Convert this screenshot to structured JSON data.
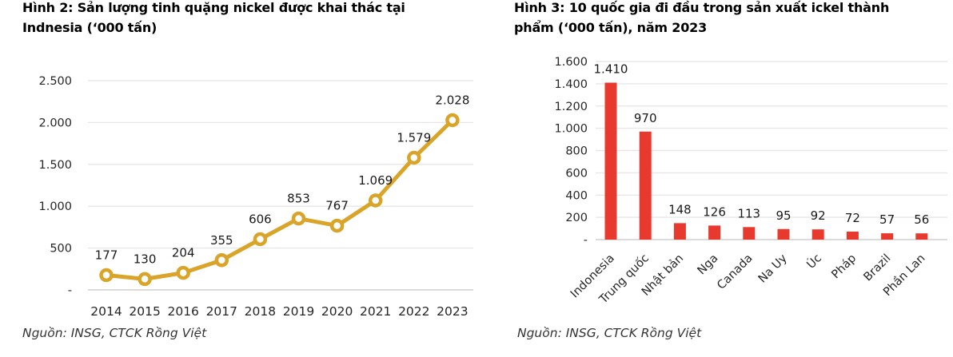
{
  "page": {
    "background": "#ffffff"
  },
  "chart_data": [
    {
      "id": "figure-2",
      "type": "line",
      "title": "Hình 2: Sản lượng tinh quặng nickel được khai thác tại Indnesia (‘000 tấn)",
      "title_lines": [
        "Hình 2: Sản lượng tinh quặng nickel được khai thác tại",
        "Indnesia (‘000 tấn)"
      ],
      "source": "Nguồn: INSG, CTCK Rồng Việt",
      "categories": [
        "2014",
        "2015",
        "2016",
        "2017",
        "2018",
        "2019",
        "2020",
        "2021",
        "2022",
        "2023"
      ],
      "values": [
        177,
        130,
        204,
        355,
        606,
        853,
        767,
        1069,
        1579,
        2028
      ],
      "value_labels": [
        "177",
        "130",
        "204",
        "355",
        "606",
        "853",
        "767",
        "1.069",
        "1.579",
        "2.028"
      ],
      "ylim": [
        0,
        2500
      ],
      "yticks": [
        2500,
        2000,
        1500,
        1000,
        500,
        0
      ],
      "ytick_labels": [
        "2.500",
        "2.000",
        "1.500",
        "1.000",
        "500",
        "-"
      ],
      "grid": true,
      "legend": "none",
      "line_color": "#DAA428",
      "marker_fill": "#ffffff",
      "grid_color": "#E7E7E7",
      "axis_color": "#CFCFCF"
    },
    {
      "id": "figure-3",
      "type": "bar",
      "title": "Hình 3: 10 quốc gia đi đầu trong sản xuất ickel thành phẩm (‘000 tấn), năm 2023",
      "title_lines": [
        "Hình 3: 10 quốc gia đi đầu trong sản xuất ickel thành",
        "phẩm (‘000 tấn), năm 2023"
      ],
      "source": "Nguồn: INSG, CTCK Rồng Việt",
      "categories": [
        "Indonesia",
        "Trung quốc",
        "Nhật bản",
        "Nga",
        "Canada",
        "Na Uy",
        "Úc",
        "Pháp",
        "Brazil",
        "Phần Lan"
      ],
      "values": [
        1410,
        970,
        148,
        126,
        113,
        95,
        92,
        72,
        57,
        56
      ],
      "value_labels": [
        "1.410",
        "970",
        "148",
        "126",
        "113",
        "95",
        "92",
        "72",
        "57",
        "56"
      ],
      "ylim": [
        0,
        1600
      ],
      "yticks": [
        1600,
        1400,
        1200,
        1000,
        800,
        600,
        400,
        200,
        0
      ],
      "ytick_labels": [
        "1.600",
        "1.400",
        "1.200",
        "1.000",
        "800",
        "600",
        "400",
        "200",
        "-"
      ],
      "grid": true,
      "legend": "none",
      "bar_color": "#E8392E",
      "grid_color": "#E7E7E7",
      "axis_color": "#CFCFCF"
    }
  ]
}
